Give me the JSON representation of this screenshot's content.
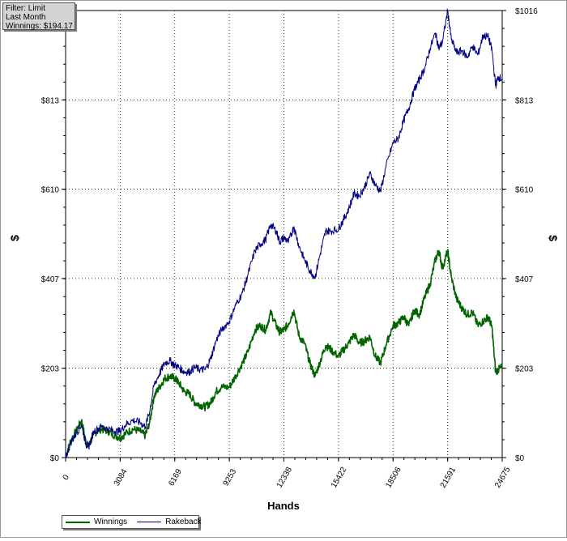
{
  "filter_box": {
    "line1": "Filter: Limit",
    "line2": "Last Month",
    "line3": "Winnings: $194.17"
  },
  "chart_data": {
    "type": "line",
    "xlabel": "Hands",
    "ylabel_left": "$",
    "ylabel_right": "$",
    "x_ticks": [
      0,
      3084,
      6169,
      9253,
      12338,
      15422,
      18506,
      21591,
      24675
    ],
    "x_tick_labels": [
      "0",
      "3084",
      "6169",
      "9253",
      "12338",
      "15422",
      "18506",
      "21591",
      "24675"
    ],
    "xlim": [
      0,
      24675
    ],
    "y_ticks": [
      0,
      203,
      407,
      610,
      813,
      1016
    ],
    "y_tick_labels": [
      "$0",
      "$203",
      "$407",
      "$610",
      "$813",
      "$1016"
    ],
    "ylim": [
      0,
      1016
    ],
    "grid": true,
    "legend_position": "bottom-left",
    "series": [
      {
        "name": "Winnings",
        "color": "#006400",
        "points": [
          [
            0,
            0
          ],
          [
            300,
            40
          ],
          [
            600,
            60
          ],
          [
            900,
            85
          ],
          [
            1150,
            35
          ],
          [
            1300,
            25
          ],
          [
            1600,
            55
          ],
          [
            2000,
            65
          ],
          [
            2400,
            60
          ],
          [
            2800,
            50
          ],
          [
            3084,
            45
          ],
          [
            3400,
            55
          ],
          [
            3800,
            65
          ],
          [
            4200,
            60
          ],
          [
            4500,
            50
          ],
          [
            4750,
            80
          ],
          [
            5000,
            140
          ],
          [
            5300,
            160
          ],
          [
            5600,
            180
          ],
          [
            5900,
            185
          ],
          [
            6169,
            180
          ],
          [
            6400,
            170
          ],
          [
            6700,
            150
          ],
          [
            7000,
            145
          ],
          [
            7300,
            125
          ],
          [
            7600,
            120
          ],
          [
            7900,
            115
          ],
          [
            8200,
            125
          ],
          [
            8500,
            150
          ],
          [
            8800,
            160
          ],
          [
            9253,
            160
          ],
          [
            9600,
            185
          ],
          [
            10000,
            215
          ],
          [
            10300,
            240
          ],
          [
            10700,
            290
          ],
          [
            11000,
            300
          ],
          [
            11300,
            290
          ],
          [
            11600,
            330
          ],
          [
            11900,
            300
          ],
          [
            12100,
            285
          ],
          [
            12338,
            290
          ],
          [
            12600,
            305
          ],
          [
            12900,
            335
          ],
          [
            13200,
            275
          ],
          [
            13500,
            260
          ],
          [
            13800,
            215
          ],
          [
            14100,
            185
          ],
          [
            14400,
            220
          ],
          [
            14700,
            255
          ],
          [
            15000,
            245
          ],
          [
            15422,
            230
          ],
          [
            15700,
            245
          ],
          [
            16000,
            260
          ],
          [
            16300,
            280
          ],
          [
            16600,
            260
          ],
          [
            16900,
            265
          ],
          [
            17200,
            275
          ],
          [
            17500,
            230
          ],
          [
            17800,
            215
          ],
          [
            18100,
            255
          ],
          [
            18506,
            300
          ],
          [
            18800,
            305
          ],
          [
            19100,
            320
          ],
          [
            19400,
            300
          ],
          [
            19700,
            335
          ],
          [
            20000,
            325
          ],
          [
            20300,
            365
          ],
          [
            20600,
            395
          ],
          [
            20900,
            450
          ],
          [
            21100,
            470
          ],
          [
            21300,
            430
          ],
          [
            21591,
            470
          ],
          [
            21800,
            410
          ],
          [
            22100,
            360
          ],
          [
            22400,
            340
          ],
          [
            22700,
            325
          ],
          [
            23000,
            330
          ],
          [
            23300,
            300
          ],
          [
            23600,
            310
          ],
          [
            23900,
            320
          ],
          [
            24100,
            295
          ],
          [
            24300,
            195
          ],
          [
            24450,
            200
          ],
          [
            24675,
            205
          ]
        ]
      },
      {
        "name": "Rakeback",
        "color": "#000080",
        "points": [
          [
            0,
            0
          ],
          [
            300,
            35
          ],
          [
            600,
            55
          ],
          [
            900,
            75
          ],
          [
            1150,
            30
          ],
          [
            1300,
            25
          ],
          [
            1600,
            60
          ],
          [
            2000,
            70
          ],
          [
            2400,
            65
          ],
          [
            2800,
            60
          ],
          [
            3084,
            60
          ],
          [
            3400,
            75
          ],
          [
            3800,
            85
          ],
          [
            4200,
            80
          ],
          [
            4500,
            70
          ],
          [
            4750,
            105
          ],
          [
            5000,
            165
          ],
          [
            5300,
            190
          ],
          [
            5600,
            215
          ],
          [
            5900,
            220
          ],
          [
            6169,
            210
          ],
          [
            6400,
            205
          ],
          [
            6700,
            195
          ],
          [
            7000,
            195
          ],
          [
            7300,
            205
          ],
          [
            7600,
            200
          ],
          [
            7900,
            200
          ],
          [
            8200,
            225
          ],
          [
            8500,
            265
          ],
          [
            8800,
            290
          ],
          [
            9253,
            310
          ],
          [
            9600,
            345
          ],
          [
            10000,
            375
          ],
          [
            10300,
            415
          ],
          [
            10700,
            470
          ],
          [
            11000,
            485
          ],
          [
            11300,
            495
          ],
          [
            11600,
            530
          ],
          [
            11900,
            515
          ],
          [
            12100,
            490
          ],
          [
            12338,
            500
          ],
          [
            12600,
            490
          ],
          [
            12900,
            525
          ],
          [
            13200,
            480
          ],
          [
            13500,
            450
          ],
          [
            13800,
            425
          ],
          [
            14100,
            410
          ],
          [
            14400,
            465
          ],
          [
            14700,
            515
          ],
          [
            15000,
            515
          ],
          [
            15422,
            520
          ],
          [
            15700,
            540
          ],
          [
            16000,
            565
          ],
          [
            16300,
            600
          ],
          [
            16600,
            595
          ],
          [
            16900,
            615
          ],
          [
            17200,
            645
          ],
          [
            17500,
            620
          ],
          [
            17800,
            605
          ],
          [
            18100,
            660
          ],
          [
            18506,
            715
          ],
          [
            18800,
            725
          ],
          [
            19100,
            765
          ],
          [
            19400,
            795
          ],
          [
            19700,
            835
          ],
          [
            20000,
            860
          ],
          [
            20300,
            885
          ],
          [
            20600,
            930
          ],
          [
            20900,
            965
          ],
          [
            21100,
            930
          ],
          [
            21300,
            945
          ],
          [
            21591,
            1016
          ],
          [
            21800,
            950
          ],
          [
            22100,
            920
          ],
          [
            22400,
            925
          ],
          [
            22700,
            910
          ],
          [
            23000,
            935
          ],
          [
            23300,
            915
          ],
          [
            23600,
            960
          ],
          [
            23900,
            955
          ],
          [
            24100,
            925
          ],
          [
            24300,
            845
          ],
          [
            24450,
            865
          ],
          [
            24675,
            860
          ]
        ]
      }
    ]
  }
}
